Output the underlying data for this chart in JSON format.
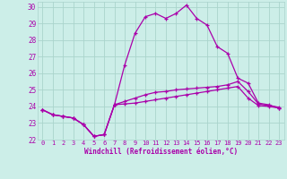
{
  "xlabel": "Windchill (Refroidissement éolien,°C)",
  "xlim": [
    -0.5,
    23.5
  ],
  "ylim": [
    22,
    30.3
  ],
  "yticks": [
    22,
    23,
    24,
    25,
    26,
    27,
    28,
    29,
    30
  ],
  "xticks": [
    0,
    1,
    2,
    3,
    4,
    5,
    6,
    7,
    8,
    9,
    10,
    11,
    12,
    13,
    14,
    15,
    16,
    17,
    18,
    19,
    20,
    21,
    22,
    23
  ],
  "background_color": "#cceee8",
  "grid_color": "#aad4cc",
  "line_color": "#aa00aa",
  "line1_y": [
    23.8,
    23.5,
    23.4,
    23.3,
    22.9,
    22.2,
    22.3,
    24.1,
    24.15,
    24.2,
    24.3,
    24.4,
    24.5,
    24.6,
    24.7,
    24.8,
    24.9,
    25.0,
    25.1,
    25.2,
    24.5,
    24.05,
    24.0,
    23.9
  ],
  "line2_y": [
    23.8,
    23.5,
    23.4,
    23.3,
    22.9,
    22.2,
    22.3,
    24.1,
    26.5,
    28.4,
    29.4,
    29.6,
    29.3,
    29.6,
    30.1,
    29.3,
    28.9,
    27.6,
    27.2,
    25.7,
    25.4,
    24.2,
    24.1,
    23.9
  ],
  "line3_y": [
    23.8,
    23.5,
    23.4,
    23.3,
    22.9,
    22.2,
    22.3,
    24.1,
    24.3,
    24.5,
    24.7,
    24.85,
    24.9,
    25.0,
    25.05,
    25.1,
    25.15,
    25.2,
    25.3,
    25.5,
    24.9,
    24.15,
    24.05,
    23.95
  ]
}
